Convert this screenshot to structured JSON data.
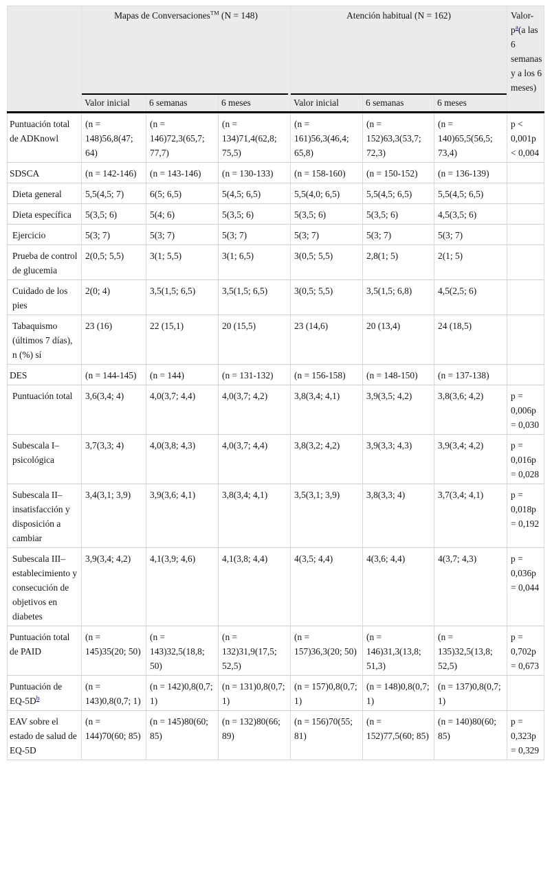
{
  "header": {
    "group1": {
      "name": "Mapas de Conversaciones",
      "sup": "TM",
      "n": " (N = 148)"
    },
    "group2": {
      "name": "Atención habitual (N = 162)"
    },
    "pcol": {
      "prefix": "Valor-p",
      "sup_link": "a",
      "suffix": "(a las 6 semanas y a los 6 meses)"
    },
    "subcols": [
      "Valor inicial",
      "6 semanas",
      "6 meses",
      "Valor inicial",
      "6 semanas",
      "6 meses"
    ]
  },
  "colors": {
    "header_bg": "#ebebeb",
    "rule_black": "#000000",
    "grid_gray": "#d9d9d9",
    "link_blue": "#0000dd"
  },
  "rows": [
    {
      "label": "Puntuación total de ADKnowl",
      "indent": false,
      "cells": [
        "(n = 148)56,8(47; 64)",
        "(n = 146)72,3(65,7; 77,7)",
        "(n = 134)71,4(62,8; 75,5)",
        "(n = 161)56,3(46,4; 65,8)",
        "(n = 152)63,3(53,7; 72,3)",
        "(n = 140)65,5(56,5; 73,4)"
      ],
      "p": "p < 0,001p < 0,004"
    },
    {
      "label": "SDSCA",
      "indent": false,
      "cells": [
        "(n = 142-146)",
        "(n = 143-146)",
        "(n = 130-133)",
        "(n = 158-160)",
        "(n = 150-152)",
        "(n = 136-139)"
      ],
      "p": ""
    },
    {
      "label": "Dieta general",
      "indent": true,
      "cells": [
        "5,5(4,5; 7)",
        "6(5; 6,5)",
        "5(4,5; 6,5)",
        "5,5(4,0; 6,5)",
        "5,5(4,5; 6,5)",
        "5,5(4,5; 6,5)"
      ],
      "p": ""
    },
    {
      "label": "Dieta específica",
      "indent": true,
      "cells": [
        "5(3,5; 6)",
        "5(4; 6)",
        "5(3,5; 6)",
        "5(3,5; 6)",
        "5(3,5; 6)",
        "4,5(3,5; 6)"
      ],
      "p": ""
    },
    {
      "label": "Ejercicio",
      "indent": true,
      "cells": [
        "5(3; 7)",
        "5(3; 7)",
        "5(3; 7)",
        "5(3; 7)",
        "5(3; 7)",
        "5(3; 7)"
      ],
      "p": ""
    },
    {
      "label": "Prueba de control de glucemia",
      "indent": true,
      "cells": [
        "2(0,5; 5,5)",
        "3(1; 5,5)",
        "3(1; 6,5)",
        "3(0,5; 5,5)",
        "2,8(1; 5)",
        "2(1; 5)"
      ],
      "p": ""
    },
    {
      "label": "Cuidado de los pies",
      "indent": true,
      "cells": [
        "2(0; 4)",
        "3,5(1,5; 6,5)",
        "3,5(1,5; 6,5)",
        "3(0,5; 5,5)",
        "3,5(1,5; 6,8)",
        "4,5(2,5; 6)"
      ],
      "p": ""
    },
    {
      "label": "Tabaquismo (últimos 7 días), n (%) sí",
      "indent": true,
      "cells": [
        "23 (16)",
        "22 (15,1)",
        "20 (15,5)",
        "23 (14,6)",
        "20 (13,4)",
        "24 (18,5)"
      ],
      "p": ""
    },
    {
      "label": "DES",
      "indent": false,
      "cells": [
        "(n = 144-145)",
        "(n = 144)",
        "(n = 131-132)",
        "(n = 156-158)",
        "(n = 148-150)",
        "(n = 137-138)"
      ],
      "p": ""
    },
    {
      "label": "Puntuación total",
      "indent": true,
      "cells": [
        "3,6(3,4; 4)",
        "4,0(3,7; 4,4)",
        "4,0(3,7; 4,2)",
        "3,8(3,4; 4,1)",
        "3,9(3,5; 4,2)",
        "3,8(3,6; 4,2)"
      ],
      "p": "p = 0,006p = 0,030"
    },
    {
      "label": "Subescala I–psicológica",
      "indent": true,
      "cells": [
        "3,7(3,3; 4)",
        "4,0(3,8; 4,3)",
        "4,0(3,7; 4,4)",
        "3,8(3,2; 4,2)",
        "3,9(3,3; 4,3)",
        "3,9(3,4; 4,2)"
      ],
      "p": "p = 0,016p = 0,028"
    },
    {
      "label": "Subescala II–insatisfacción y disposición a cambiar",
      "indent": true,
      "cells": [
        "3,4(3,1; 3,9)",
        "3,9(3,6; 4,1)",
        "3,8(3,4; 4,1)",
        "3,5(3,1; 3,9)",
        "3,8(3,3; 4)",
        "3,7(3,4; 4,1)"
      ],
      "p": "p = 0,018p = 0,192"
    },
    {
      "label": "Subescala III–establecimiento y consecución de objetivos en diabetes",
      "indent": true,
      "cells": [
        "3,9(3,4; 4,2)",
        "4,1(3,9; 4,6)",
        "4,1(3,8; 4,4)",
        "4(3,5; 4,4)",
        "4(3,6; 4,4)",
        "4(3,7; 4,3)"
      ],
      "p": "p = 0,036p = 0,044"
    },
    {
      "label": "Puntuación total de PAID",
      "indent": false,
      "cells": [
        "(n = 145)35(20; 50)",
        "(n = 143)32,5(18,8; 50)",
        "(n = 132)31,9(17,5; 52,5)",
        "(n = 157)36,3(20; 50)",
        "(n = 146)31,3(13,8; 51,3)",
        "(n = 135)32,5(13,8; 52,5)"
      ],
      "p": "p = 0,702p = 0,673"
    },
    {
      "label": "Puntuación de EQ-5D",
      "indent": false,
      "footnote_link": "b",
      "cells": [
        "(n = 143)0,8(0,7; 1)",
        "(n = 142)0,8(0,7; 1)",
        "(n = 131)0,8(0,7; 1)",
        "(n = 157)0,8(0,7; 1)",
        "(n = 148)0,8(0,7; 1)",
        "(n = 137)0,8(0,7; 1)"
      ],
      "p": ""
    },
    {
      "label": "EAV sobre el estado de salud de EQ-5D",
      "indent": false,
      "cells": [
        "(n = 144)70(60; 85)",
        "(n = 145)80(60; 85)",
        "(n = 132)80(66; 89)",
        "(n = 156)70(55; 81)",
        "(n = 152)77,5(60; 85)",
        "(n = 140)80(60; 85)"
      ],
      "p": "p = 0,323p = 0,329"
    }
  ]
}
